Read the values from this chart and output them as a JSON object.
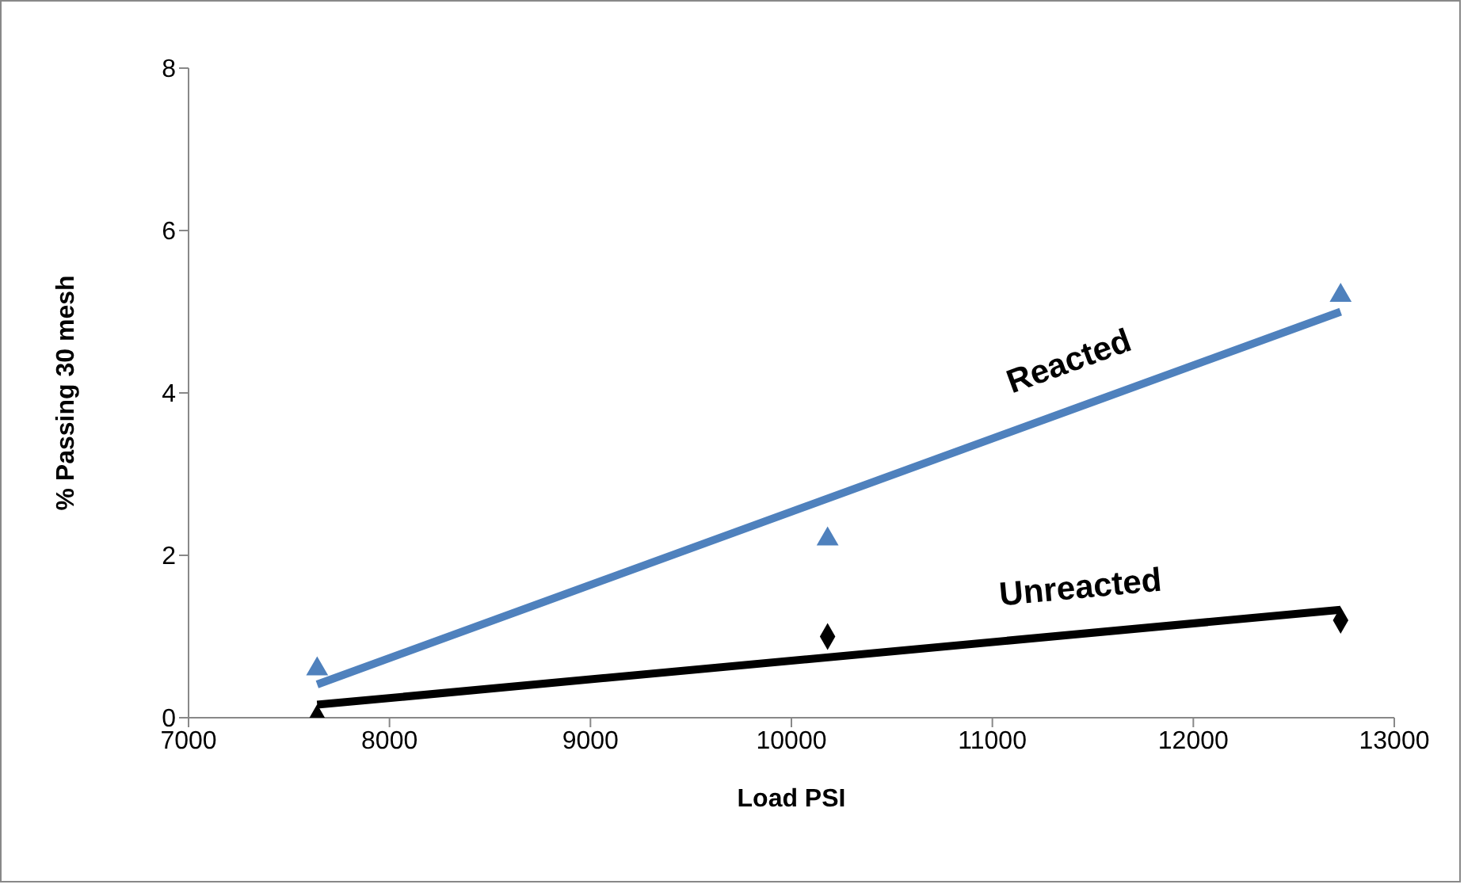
{
  "chart_data": {
    "type": "scatter",
    "xlabel": "Load PSI",
    "ylabel": "% Passing 30 mesh",
    "xlim": [
      7000,
      13000
    ],
    "xticks": [
      7000,
      8000,
      9000,
      10000,
      11000,
      12000,
      13000
    ],
    "ylim": [
      0,
      8
    ],
    "yticks": [
      0,
      2,
      4,
      6,
      8
    ],
    "grid": false,
    "legend": false,
    "series": [
      {
        "marker": "triangle",
        "color": "#4f81bd",
        "x": [
          7640,
          10180,
          12733
        ],
        "values": [
          0.6,
          2.2,
          5.2
        ]
      },
      {
        "marker": "diamond",
        "color": "#000000",
        "x": [
          7640,
          10180,
          12733
        ],
        "values": [
          0,
          1.0,
          1.2
        ]
      },
      {
        "type": "line",
        "name": "Reacted",
        "color": "#4f81bd",
        "marker": "none",
        "x": [
          7640,
          12733
        ],
        "values": [
          0.41,
          5.0
        ]
      },
      {
        "type": "line",
        "name": "Unreacted",
        "color": "#000000",
        "marker": "none",
        "x": [
          7640,
          12733
        ],
        "values": [
          0.16,
          1.33
        ]
      }
    ]
  }
}
